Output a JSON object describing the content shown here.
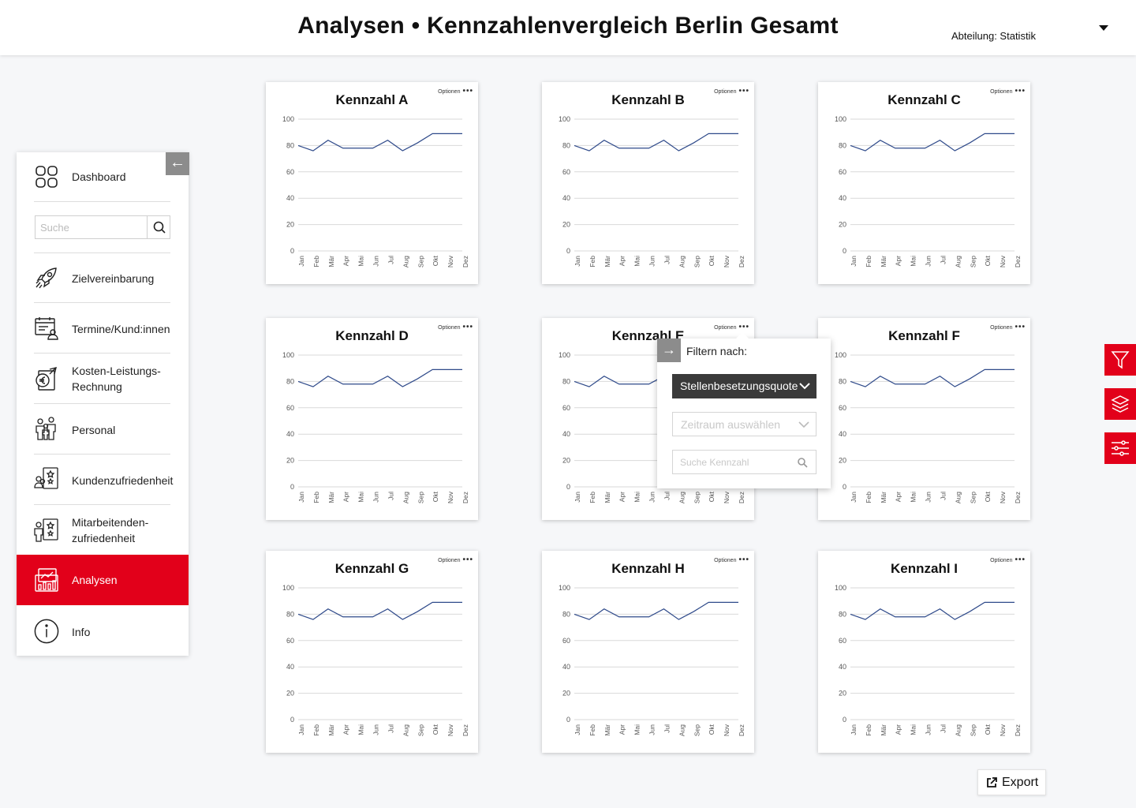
{
  "header": {
    "title": "Analysen • Kennzahlenvergleich Berlin Gesamt",
    "department": "Abteilung: Statistik"
  },
  "sidebar": {
    "collapse_icon": "arrow-left-icon",
    "search": {
      "placeholder": "Suche",
      "icon": "search-icon"
    },
    "items": [
      {
        "label": "Dashboard",
        "icon": "dashboard-icon"
      },
      {
        "label": "Zielvereinbarung",
        "icon": "rocket-icon"
      },
      {
        "label": "Termine/Kund:innen",
        "icon": "calendar-person-icon"
      },
      {
        "label_line1": "Kosten-Leistungs-",
        "label_line2": "Rechnung",
        "icon": "euro-cost-icon"
      },
      {
        "label": "Personal",
        "icon": "people-icon"
      },
      {
        "label": "Kundenzufriedenheit",
        "icon": "customer-stars-icon"
      },
      {
        "label_line1": "Mitarbeitenden-",
        "label_line2": "zufriedenheit",
        "icon": "staff-stars-icon"
      },
      {
        "label": "Analysen",
        "icon": "analytics-icon",
        "active": true
      },
      {
        "label": "Info",
        "icon": "info-icon"
      }
    ]
  },
  "cards": [
    {
      "title": "Kennzahl A",
      "options": "Optionen"
    },
    {
      "title": "Kennzahl B",
      "options": "Optionen"
    },
    {
      "title": "Kennzahl C",
      "options": "Optionen"
    },
    {
      "title": "Kennzahl D",
      "options": "Optionen"
    },
    {
      "title": "Kennzahl E",
      "options": "Optionen"
    },
    {
      "title": "Kennzahl F",
      "options": "Optionen"
    },
    {
      "title": "Kennzahl G",
      "options": "Optionen"
    },
    {
      "title": "Kennzahl H",
      "options": "Optionen"
    },
    {
      "title": "Kennzahl I",
      "options": "Optionen"
    }
  ],
  "chart_data": {
    "type": "line",
    "categories": [
      "Jan",
      "Feb",
      "Mär",
      "Apr",
      "Mai",
      "Jun",
      "Jul",
      "Aug",
      "Sep",
      "Okt",
      "Nov",
      "Dez"
    ],
    "values": [
      80,
      76,
      84,
      78,
      78,
      78,
      84,
      76,
      82,
      89,
      89,
      89
    ],
    "yticks": [
      0,
      20,
      40,
      60,
      80,
      100
    ],
    "ylim": [
      0,
      100
    ],
    "grid": true,
    "line_color": "#2f4a8a"
  },
  "filter_popup": {
    "title": "Filtern nach:",
    "metric_selected": "Stellenbesetzungsquote",
    "period_placeholder": "Zeitraum auswählen",
    "search_placeholder": "Suche Kennzahl"
  },
  "side_tools": [
    "filter-icon",
    "layers-icon",
    "sliders-icon"
  ],
  "export": {
    "label": "Export",
    "icon": "external-link-icon"
  },
  "colors": {
    "accent": "#e2001a",
    "dark": "#3a3a3a",
    "gray": "#8c8c8c"
  }
}
